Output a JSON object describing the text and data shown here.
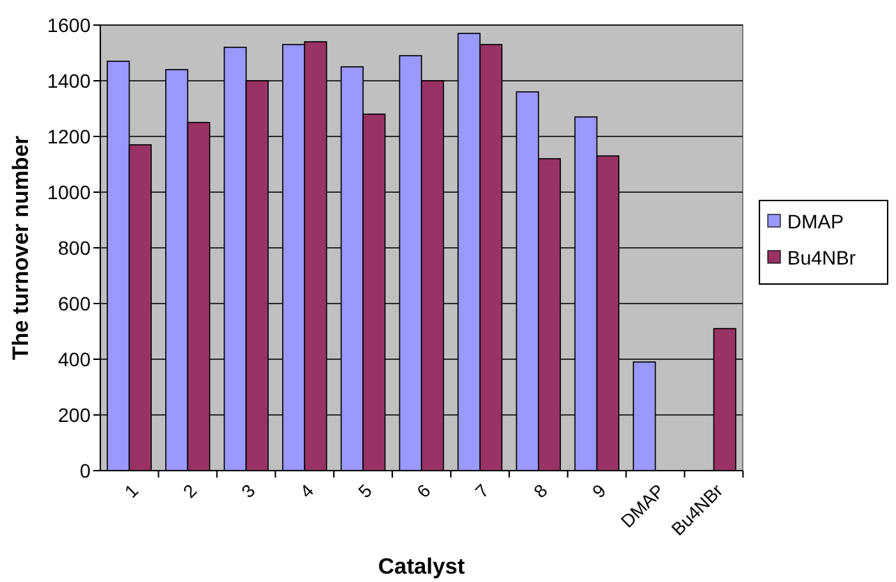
{
  "chart_data": {
    "type": "bar",
    "xlabel": "Catalyst",
    "ylabel": "The turnover number",
    "categories": [
      "1",
      "2",
      "3",
      "4",
      "5",
      "6",
      "7",
      "8",
      "9",
      "DMAP",
      "Bu4NBr"
    ],
    "series": [
      {
        "name": "DMAP",
        "color": "#9999ff",
        "values": [
          1470,
          1440,
          1520,
          1530,
          1450,
          1490,
          1570,
          1360,
          1270,
          390,
          null
        ]
      },
      {
        "name": "Bu4NBr",
        "color": "#993366",
        "values": [
          1170,
          1250,
          1400,
          1540,
          1280,
          1400,
          1530,
          1120,
          1130,
          null,
          510
        ]
      }
    ],
    "ylim": [
      0,
      1600
    ],
    "yticks": [
      0,
      200,
      400,
      600,
      800,
      1000,
      1200,
      1400,
      1600
    ],
    "grid": "y",
    "legend": "right"
  }
}
